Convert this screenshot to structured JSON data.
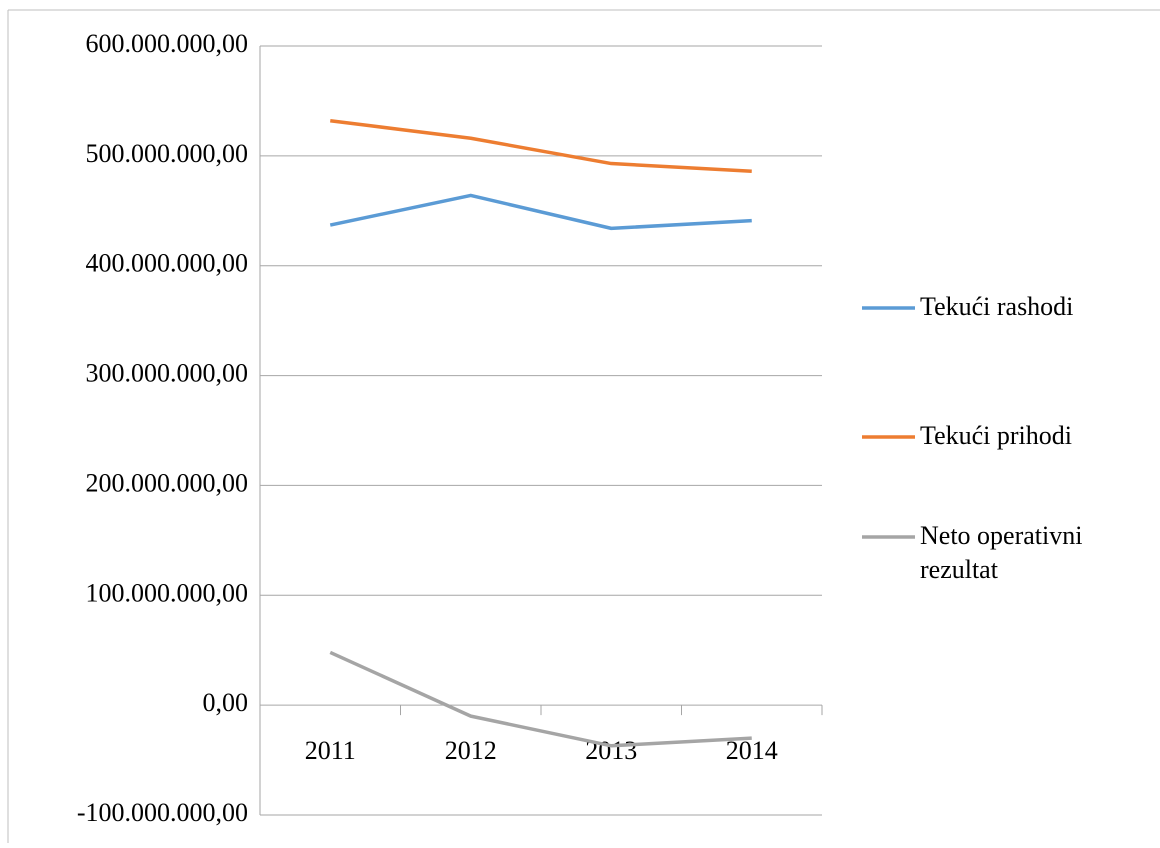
{
  "chart_data": {
    "type": "line",
    "categories": [
      "2011",
      "2012",
      "2013",
      "2014"
    ],
    "series": [
      {
        "name": "Tekući rashodi",
        "color": "#5b9bd5",
        "values": [
          437000000,
          464000000,
          434000000,
          441000000
        ]
      },
      {
        "name": "Tekući prihodi",
        "color": "#ed7d31",
        "values": [
          532000000,
          516000000,
          493000000,
          486000000
        ]
      },
      {
        "name": "Neto operativni rezultat",
        "color": "#a5a5a5",
        "values": [
          48000000,
          -10000000,
          -37000000,
          -30000000
        ]
      }
    ],
    "ylim": [
      -100000000,
      600000000
    ],
    "yticks": [
      {
        "value": -100000000,
        "label": "-100.000.000,00"
      },
      {
        "value": 0,
        "label": "0,00"
      },
      {
        "value": 100000000,
        "label": "100.000.000,00"
      },
      {
        "value": 200000000,
        "label": "200.000.000,00"
      },
      {
        "value": 300000000,
        "label": "300.000.000,00"
      },
      {
        "value": 400000000,
        "label": "400.000.000,00"
      },
      {
        "value": 500000000,
        "label": "500.000.000,00"
      },
      {
        "value": 600000000,
        "label": "600.000.000,00"
      }
    ],
    "grid": true,
    "legend": "right"
  }
}
